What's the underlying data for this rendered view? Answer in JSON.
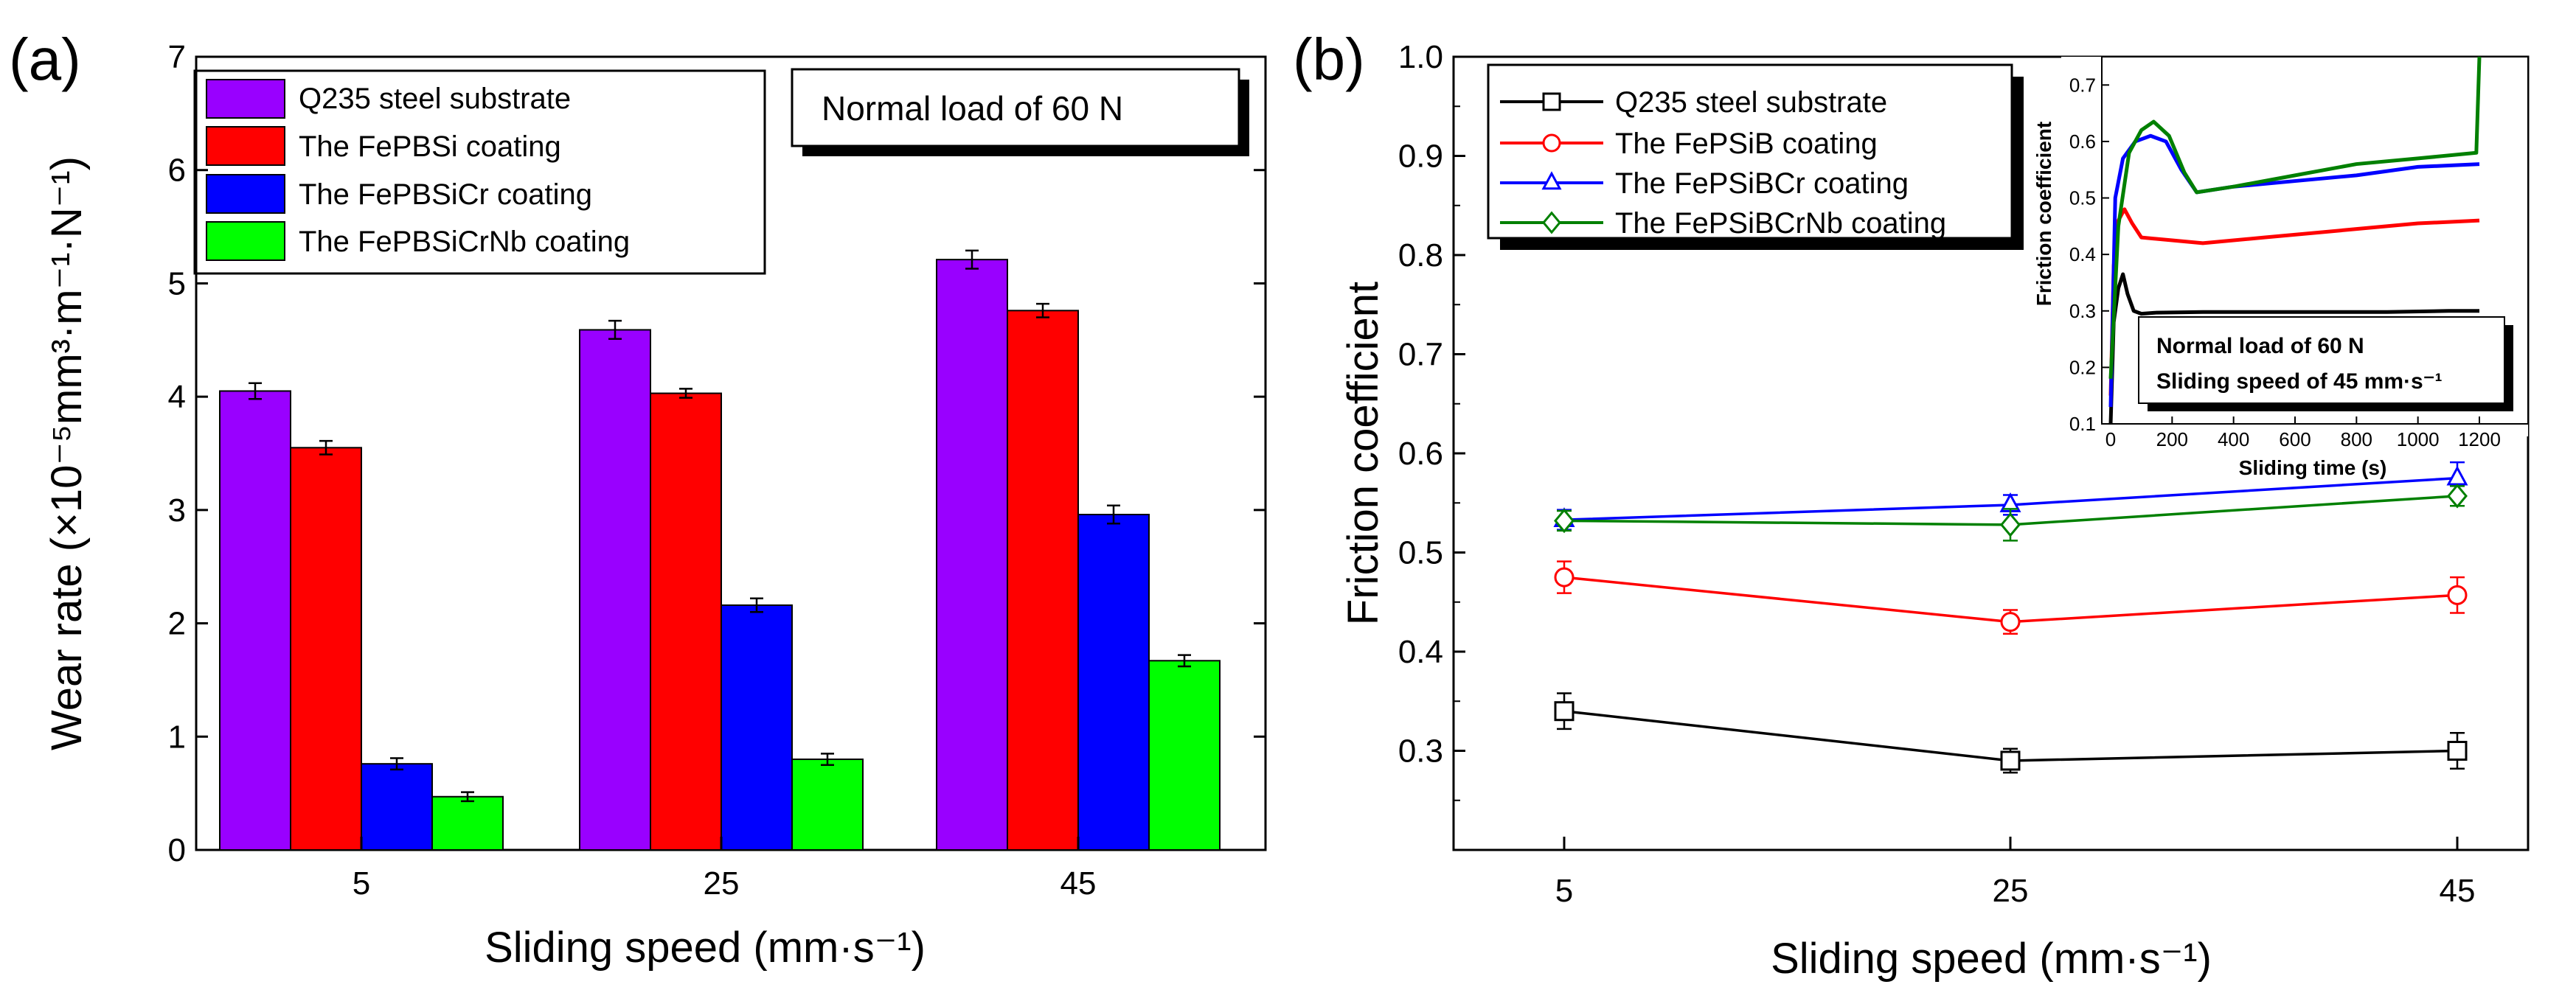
{
  "chart_data": [
    {
      "type": "bar",
      "panel_label": "(a)",
      "categories": [
        "5",
        "25",
        "45"
      ],
      "series": [
        {
          "name": "Q235 steel substrate",
          "color": "#9900ff",
          "values": [
            4.05,
            4.59,
            5.21
          ],
          "errors": [
            0.07,
            0.08,
            0.08
          ]
        },
        {
          "name": "The FePBSi coating",
          "color": "#ff0000",
          "values": [
            3.55,
            4.03,
            4.76
          ],
          "errors": [
            0.06,
            0.04,
            0.06
          ]
        },
        {
          "name": "The FePBSiCr coating",
          "color": "#0000ff",
          "values": [
            0.76,
            2.16,
            2.96
          ],
          "errors": [
            0.05,
            0.06,
            0.08
          ]
        },
        {
          "name": "The FePBSiCrNb coating",
          "color": "#00ff00",
          "values": [
            0.47,
            0.8,
            1.67
          ],
          "errors": [
            0.04,
            0.05,
            0.05
          ]
        }
      ],
      "xlabel": "Sliding speed (mm·s⁻¹)",
      "ylabel": "Wear rate (×10⁻⁵mm³·m⁻¹·N⁻¹)",
      "ylim": [
        0,
        7
      ],
      "yticks": [
        "0",
        "1",
        "2",
        "3",
        "4",
        "5",
        "6",
        "7"
      ],
      "annotation": "Normal load of 60 N",
      "legend_position": "top-left"
    },
    {
      "type": "line",
      "panel_label": "(b)",
      "x": [
        "5",
        "25",
        "45"
      ],
      "series": [
        {
          "name": "Q235 steel substrate",
          "color": "#000000",
          "marker": "square",
          "values": [
            0.34,
            0.29,
            0.3
          ],
          "errors": [
            0.018,
            0.012,
            0.018
          ]
        },
        {
          "name": "The FePSiB coating",
          "color": "#ff0000",
          "marker": "circle",
          "values": [
            0.475,
            0.43,
            0.457
          ],
          "errors": [
            0.016,
            0.012,
            0.018
          ]
        },
        {
          "name": "The FePSiBCr coating",
          "color": "#0000ff",
          "marker": "triangle",
          "values": [
            0.533,
            0.548,
            0.575
          ],
          "errors": [
            0.01,
            0.01,
            0.016
          ]
        },
        {
          "name": "The FePSiBCrNb coating",
          "color": "#008000",
          "marker": "diamond",
          "values": [
            0.532,
            0.528,
            0.557
          ],
          "errors": [
            0.01,
            0.016,
            0.01
          ]
        }
      ],
      "xlabel": "Sliding speed (mm·s⁻¹)",
      "ylabel": "Friction coefficient",
      "ylim": [
        0.2,
        1.0
      ],
      "yticks": [
        "0.3",
        "0.4",
        "0.5",
        "0.6",
        "0.7",
        "0.8",
        "0.9",
        "1.0"
      ],
      "legend_position": "top-left"
    },
    {
      "type": "line",
      "panel_label": "inset of (b)",
      "x_range": [
        0,
        1200
      ],
      "xticks": [
        "0",
        "200",
        "400",
        "600",
        "800",
        "1000",
        "1200"
      ],
      "yticks": [
        "0.1",
        "0.2",
        "0.3",
        "0.4",
        "0.5",
        "0.6",
        "0.7"
      ],
      "ylim": [
        0.1,
        0.75
      ],
      "series": [
        {
          "name": "Q235 steel substrate",
          "color": "#000000",
          "x": [
            0,
            10,
            25,
            40,
            55,
            75,
            100,
            150,
            300,
            600,
            900,
            1100,
            1200
          ],
          "values": [
            0.1,
            0.28,
            0.34,
            0.365,
            0.33,
            0.3,
            0.295,
            0.297,
            0.298,
            0.298,
            0.298,
            0.3,
            0.3
          ]
        },
        {
          "name": "The FePSiB coating",
          "color": "#ff0000",
          "x": [
            0,
            10,
            25,
            45,
            70,
            100,
            200,
            300,
            500,
            800,
            1000,
            1200
          ],
          "values": [
            0.15,
            0.38,
            0.46,
            0.48,
            0.455,
            0.43,
            0.425,
            0.42,
            0.43,
            0.445,
            0.455,
            0.46
          ]
        },
        {
          "name": "The FePSiBCr coating",
          "color": "#0000ff",
          "x": [
            0,
            15,
            40,
            80,
            130,
            180,
            230,
            280,
            400,
            600,
            800,
            1000,
            1200
          ],
          "values": [
            0.13,
            0.5,
            0.57,
            0.6,
            0.61,
            0.6,
            0.55,
            0.51,
            0.52,
            0.53,
            0.54,
            0.555,
            0.56
          ]
        },
        {
          "name": "The FePSiBCrNb coating",
          "color": "#008000",
          "x": [
            0,
            25,
            60,
            100,
            140,
            190,
            240,
            280,
            400,
            600,
            800,
            1000,
            1190,
            1200
          ],
          "values": [
            0.18,
            0.45,
            0.58,
            0.62,
            0.635,
            0.61,
            0.545,
            0.51,
            0.52,
            0.54,
            0.56,
            0.57,
            0.58,
            0.75
          ]
        }
      ],
      "xlabel": "Sliding time (s)",
      "ylabel": "Friction coefficient",
      "annotation_lines": [
        "Normal load of 60 N",
        "Sliding speed of 45 mm·s⁻¹"
      ]
    }
  ]
}
